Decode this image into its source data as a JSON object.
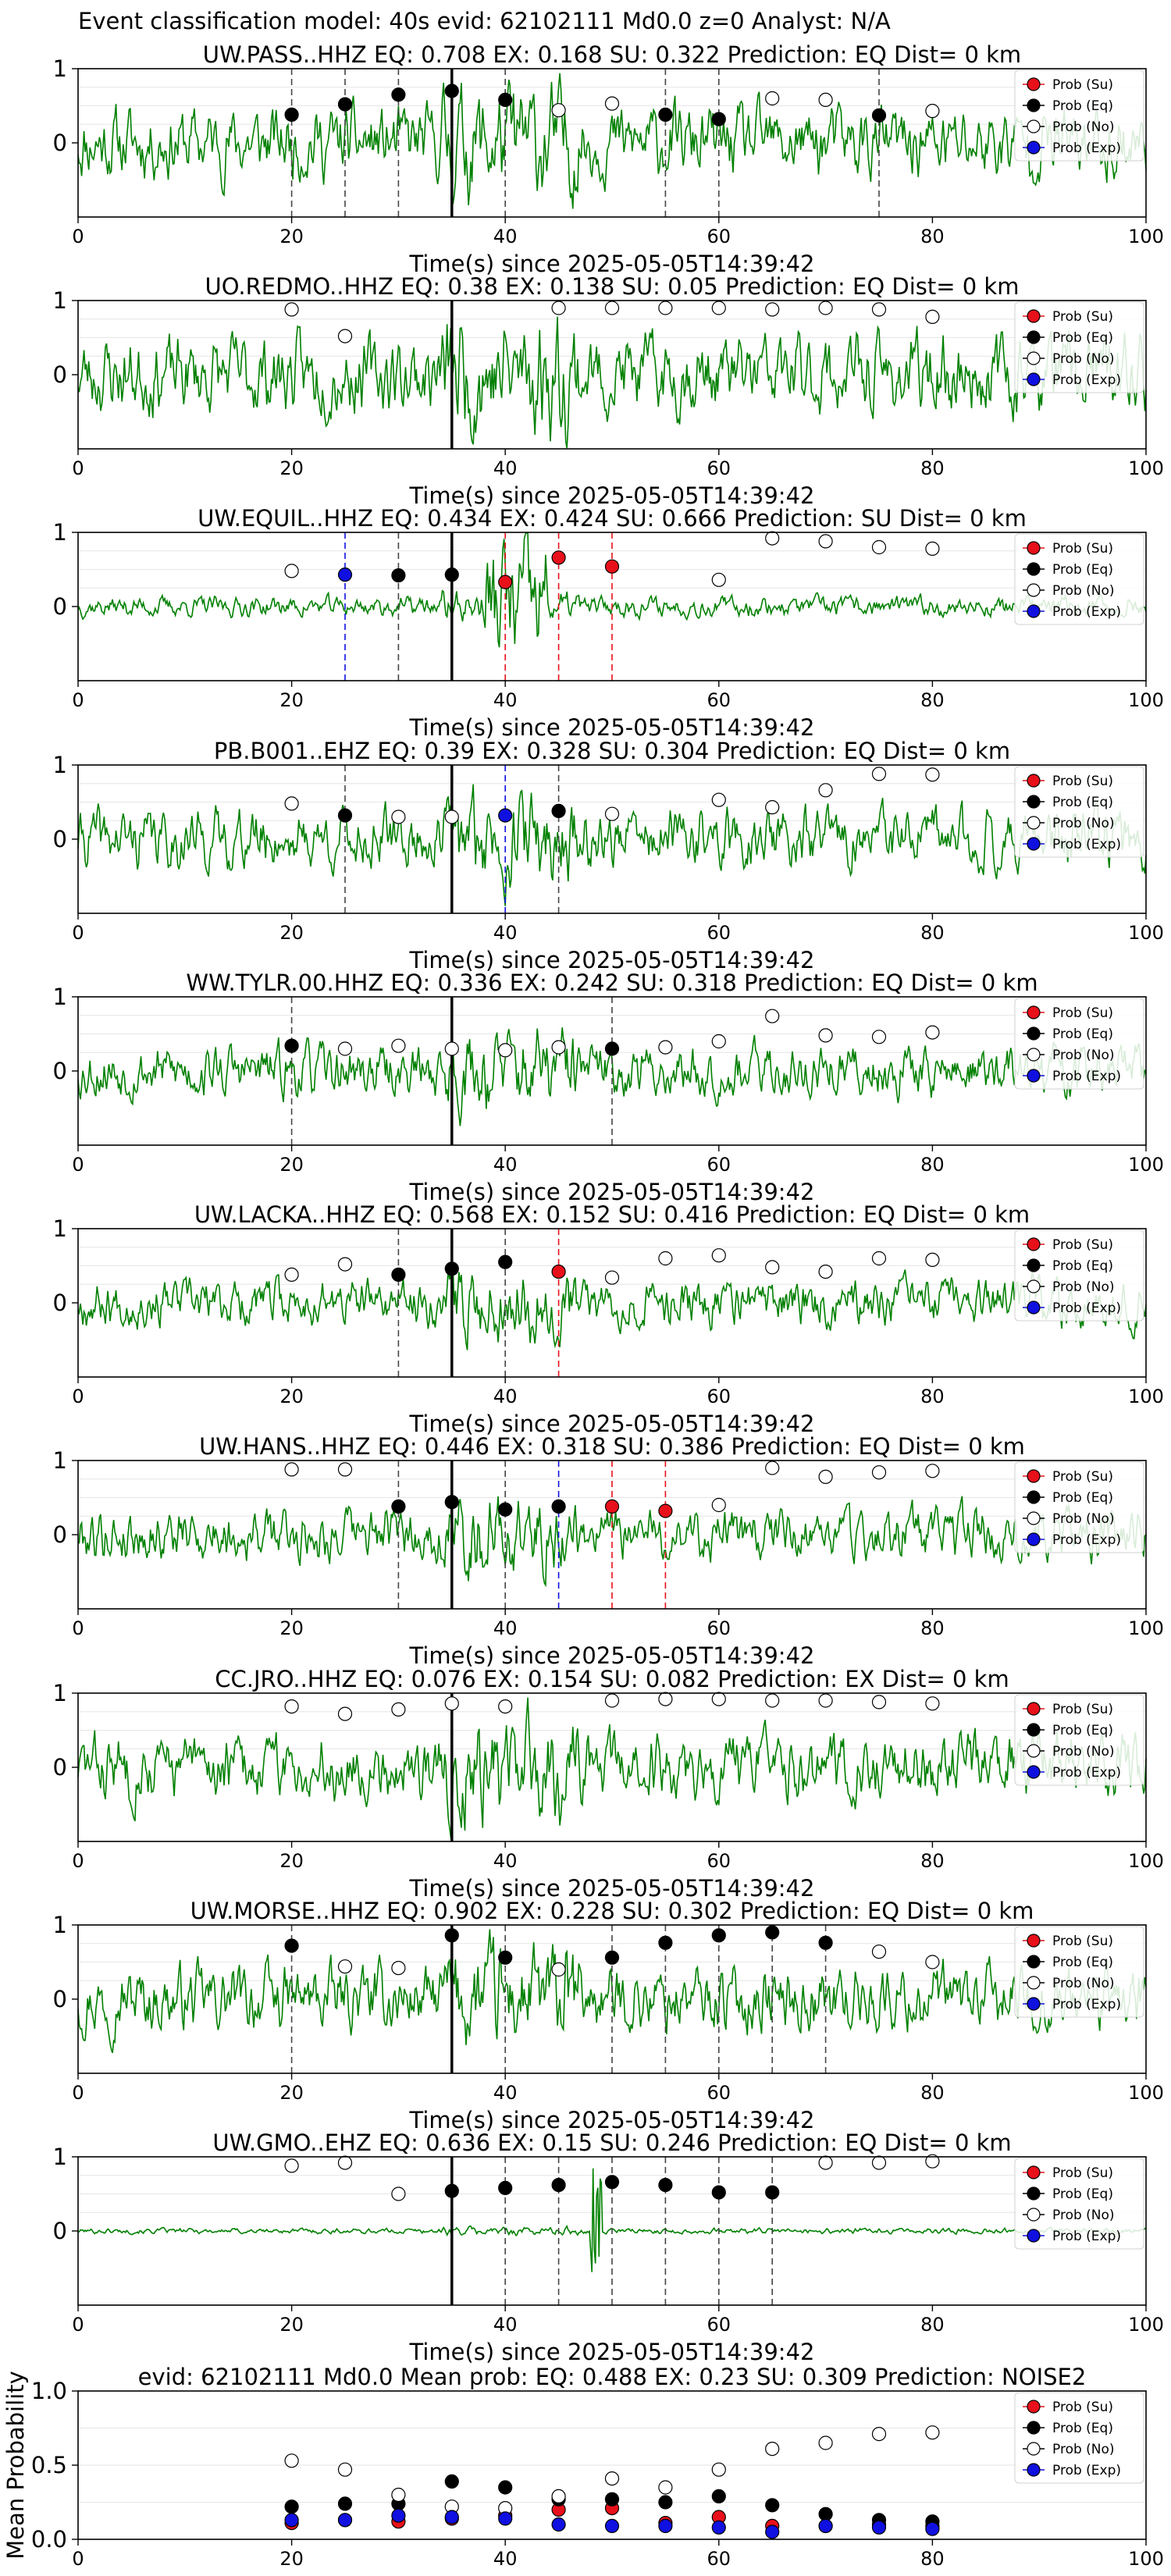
{
  "suptitle": "Event classification model: 40s evid: 62102111 Md0.0 z=0 Analyst: N/A",
  "legend_labels": [
    "Prob (Su)",
    "Prob (Eq)",
    "Prob (No)",
    "Prob (Exp)"
  ],
  "colors": {
    "su": "#e8101a",
    "eq": "#000000",
    "no": "#ffffff",
    "exp": "#1010e0",
    "wave": "#008000"
  },
  "chart_data": [
    {
      "type": "scatter",
      "title": "UW.PASS..HHZ   EQ: 0.708  EX: 0.168  SU: 0.322   Prediction: EQ    Dist= 0 km",
      "xlabel": "Time(s) since 2025-05-05T14:39:42",
      "xlim": [
        0,
        100
      ],
      "ylim": [
        -1,
        1
      ],
      "xticks": [
        "0",
        "20",
        "40",
        "60",
        "80",
        "100"
      ],
      "yticks": [
        "0",
        "1"
      ],
      "arrival": 35,
      "amp": 0.55,
      "seed": 11,
      "points": [
        [
          20,
          0.38,
          "eq"
        ],
        [
          25,
          0.52,
          "eq"
        ],
        [
          30,
          0.65,
          "eq"
        ],
        [
          35,
          0.7,
          "eq"
        ],
        [
          40,
          0.58,
          "eq"
        ],
        [
          45,
          0.44,
          "no"
        ],
        [
          50,
          0.53,
          "no"
        ],
        [
          55,
          0.38,
          "eq"
        ],
        [
          60,
          0.32,
          "eq"
        ],
        [
          65,
          0.6,
          "no"
        ],
        [
          70,
          0.58,
          "no"
        ],
        [
          75,
          0.37,
          "eq"
        ],
        [
          80,
          0.43,
          "no"
        ]
      ],
      "lines": [
        [
          20,
          "eq"
        ],
        [
          25,
          "eq"
        ],
        [
          30,
          "eq"
        ],
        [
          40,
          "eq"
        ],
        [
          55,
          "eq"
        ],
        [
          60,
          "eq"
        ],
        [
          75,
          "eq"
        ]
      ]
    },
    {
      "type": "scatter",
      "title": "UO.REDMO..HHZ   EQ: 0.38  EX: 0.138  SU: 0.05   Prediction: EQ    Dist= 0 km",
      "xlabel": "Time(s) since 2025-05-05T14:39:42",
      "xlim": [
        0,
        100
      ],
      "ylim": [
        -1,
        1
      ],
      "xticks": [
        "0",
        "20",
        "40",
        "60",
        "80",
        "100"
      ],
      "yticks": [
        "0",
        "1"
      ],
      "arrival": 35,
      "amp": 0.6,
      "seed": 23,
      "points": [
        [
          20,
          0.88,
          "no"
        ],
        [
          25,
          0.52,
          "no"
        ],
        [
          45,
          0.9,
          "no"
        ],
        [
          50,
          0.9,
          "no"
        ],
        [
          55,
          0.9,
          "no"
        ],
        [
          60,
          0.9,
          "no"
        ],
        [
          65,
          0.88,
          "no"
        ],
        [
          70,
          0.9,
          "no"
        ],
        [
          75,
          0.88,
          "no"
        ],
        [
          80,
          0.78,
          "no"
        ]
      ],
      "lines": []
    },
    {
      "type": "scatter",
      "title": "UW.EQUIL..HHZ   EQ: 0.434  EX: 0.424  SU: 0.666   Prediction: SU    Dist= 0 km",
      "xlabel": "Time(s) since 2025-05-05T14:39:42",
      "xlim": [
        0,
        100
      ],
      "ylim": [
        -1,
        1
      ],
      "xticks": [
        "0",
        "20",
        "40",
        "60",
        "80",
        "100"
      ],
      "yticks": [
        "0",
        "1"
      ],
      "arrival": 35,
      "amp": 0.15,
      "seed": 37,
      "points": [
        [
          20,
          0.48,
          "no"
        ],
        [
          25,
          0.43,
          "exp"
        ],
        [
          30,
          0.42,
          "eq"
        ],
        [
          35,
          0.43,
          "eq"
        ],
        [
          40,
          0.33,
          "su"
        ],
        [
          45,
          0.66,
          "su"
        ],
        [
          50,
          0.54,
          "su"
        ],
        [
          60,
          0.36,
          "no"
        ],
        [
          65,
          0.92,
          "no"
        ],
        [
          70,
          0.88,
          "no"
        ],
        [
          75,
          0.8,
          "no"
        ],
        [
          80,
          0.78,
          "no"
        ]
      ],
      "lines": [
        [
          25,
          "exp"
        ],
        [
          30,
          "eq"
        ],
        [
          40,
          "su"
        ],
        [
          45,
          "su"
        ],
        [
          50,
          "su"
        ]
      ]
    },
    {
      "type": "scatter",
      "title": "PB.B001..EHZ   EQ: 0.39  EX: 0.328  SU: 0.304   Prediction: EQ    Dist= 0 km",
      "xlabel": "Time(s) since 2025-05-05T14:39:42",
      "xlim": [
        0,
        100
      ],
      "ylim": [
        -1,
        1
      ],
      "xticks": [
        "0",
        "20",
        "40",
        "60",
        "80",
        "100"
      ],
      "yticks": [
        "0",
        "1"
      ],
      "arrival": 35,
      "amp": 0.45,
      "seed": 41,
      "points": [
        [
          20,
          0.48,
          "no"
        ],
        [
          25,
          0.32,
          "eq"
        ],
        [
          30,
          0.3,
          "no"
        ],
        [
          35,
          0.3,
          "no"
        ],
        [
          40,
          0.32,
          "exp"
        ],
        [
          45,
          0.38,
          "eq"
        ],
        [
          50,
          0.34,
          "no"
        ],
        [
          60,
          0.53,
          "no"
        ],
        [
          65,
          0.43,
          "no"
        ],
        [
          70,
          0.66,
          "no"
        ],
        [
          75,
          0.88,
          "no"
        ],
        [
          80,
          0.87,
          "no"
        ]
      ],
      "lines": [
        [
          25,
          "eq"
        ],
        [
          40,
          "exp"
        ],
        [
          45,
          "eq"
        ]
      ]
    },
    {
      "type": "scatter",
      "title": "WW.TYLR.00.HHZ   EQ: 0.336  EX: 0.242  SU: 0.318   Prediction: EQ    Dist= 0 km",
      "xlabel": "Time(s) since 2025-05-05T14:39:42",
      "xlim": [
        0,
        100
      ],
      "ylim": [
        -1,
        1
      ],
      "xticks": [
        "0",
        "20",
        "40",
        "60",
        "80",
        "100"
      ],
      "yticks": [
        "0",
        "1"
      ],
      "arrival": 35,
      "amp": 0.4,
      "seed": 53,
      "points": [
        [
          20,
          0.34,
          "eq"
        ],
        [
          25,
          0.3,
          "no"
        ],
        [
          30,
          0.34,
          "no"
        ],
        [
          35,
          0.3,
          "no"
        ],
        [
          40,
          0.28,
          "no"
        ],
        [
          45,
          0.32,
          "no"
        ],
        [
          50,
          0.3,
          "eq"
        ],
        [
          55,
          0.32,
          "no"
        ],
        [
          60,
          0.4,
          "no"
        ],
        [
          65,
          0.74,
          "no"
        ],
        [
          70,
          0.48,
          "no"
        ],
        [
          75,
          0.46,
          "no"
        ],
        [
          80,
          0.52,
          "no"
        ]
      ],
      "lines": [
        [
          20,
          "eq"
        ],
        [
          50,
          "eq"
        ]
      ]
    },
    {
      "type": "scatter",
      "title": "UW.LACKA..HHZ   EQ: 0.568  EX: 0.152  SU: 0.416   Prediction: EQ    Dist= 0 km",
      "xlabel": "Time(s) since 2025-05-05T14:39:42",
      "xlim": [
        0,
        100
      ],
      "ylim": [
        -1,
        1
      ],
      "xticks": [
        "0",
        "20",
        "40",
        "60",
        "80",
        "100"
      ],
      "yticks": [
        "0",
        "1"
      ],
      "arrival": 35,
      "amp": 0.35,
      "seed": 67,
      "points": [
        [
          20,
          0.38,
          "no"
        ],
        [
          25,
          0.52,
          "no"
        ],
        [
          30,
          0.38,
          "eq"
        ],
        [
          35,
          0.46,
          "eq"
        ],
        [
          40,
          0.55,
          "eq"
        ],
        [
          45,
          0.42,
          "su"
        ],
        [
          50,
          0.34,
          "no"
        ],
        [
          55,
          0.6,
          "no"
        ],
        [
          60,
          0.64,
          "no"
        ],
        [
          65,
          0.48,
          "no"
        ],
        [
          70,
          0.42,
          "no"
        ],
        [
          75,
          0.6,
          "no"
        ],
        [
          80,
          0.58,
          "no"
        ]
      ],
      "lines": [
        [
          30,
          "eq"
        ],
        [
          40,
          "eq"
        ],
        [
          45,
          "su"
        ]
      ]
    },
    {
      "type": "scatter",
      "title": "UW.HANS..HHZ   EQ: 0.446  EX: 0.318  SU: 0.386   Prediction: EQ    Dist= 0 km",
      "xlabel": "Time(s) since 2025-05-05T14:39:42",
      "xlim": [
        0,
        100
      ],
      "ylim": [
        -1,
        1
      ],
      "xticks": [
        "0",
        "20",
        "40",
        "60",
        "80",
        "100"
      ],
      "yticks": [
        "0",
        "1"
      ],
      "arrival": 35,
      "amp": 0.4,
      "seed": 79,
      "points": [
        [
          20,
          0.88,
          "no"
        ],
        [
          25,
          0.88,
          "no"
        ],
        [
          30,
          0.38,
          "eq"
        ],
        [
          35,
          0.44,
          "eq"
        ],
        [
          40,
          0.34,
          "eq"
        ],
        [
          45,
          0.38,
          "eq"
        ],
        [
          50,
          0.38,
          "su"
        ],
        [
          55,
          0.32,
          "su"
        ],
        [
          60,
          0.4,
          "no"
        ],
        [
          65,
          0.9,
          "no"
        ],
        [
          70,
          0.78,
          "no"
        ],
        [
          75,
          0.84,
          "no"
        ],
        [
          80,
          0.86,
          "no"
        ]
      ],
      "lines": [
        [
          30,
          "eq"
        ],
        [
          40,
          "eq"
        ],
        [
          45,
          "exp"
        ],
        [
          50,
          "su"
        ],
        [
          55,
          "su"
        ]
      ]
    },
    {
      "type": "scatter",
      "title": "CC.JRO..HHZ   EQ: 0.076  EX: 0.154  SU: 0.082   Prediction: EX    Dist= 0 km",
      "xlabel": "Time(s) since 2025-05-05T14:39:42",
      "xlim": [
        0,
        100
      ],
      "ylim": [
        -1,
        1
      ],
      "xticks": [
        "0",
        "20",
        "40",
        "60",
        "80",
        "100"
      ],
      "yticks": [
        "0",
        "1"
      ],
      "arrival": 35,
      "amp": 0.5,
      "seed": 83,
      "points": [
        [
          20,
          0.82,
          "no"
        ],
        [
          25,
          0.72,
          "no"
        ],
        [
          30,
          0.78,
          "no"
        ],
        [
          35,
          0.86,
          "no"
        ],
        [
          40,
          0.82,
          "no"
        ],
        [
          50,
          0.9,
          "no"
        ],
        [
          55,
          0.92,
          "no"
        ],
        [
          60,
          0.92,
          "no"
        ],
        [
          65,
          0.9,
          "no"
        ],
        [
          70,
          0.9,
          "no"
        ],
        [
          75,
          0.88,
          "no"
        ],
        [
          80,
          0.86,
          "no"
        ]
      ],
      "lines": []
    },
    {
      "type": "scatter",
      "title": "UW.MORSE..HHZ   EQ: 0.902  EX: 0.228  SU: 0.302   Prediction: EQ    Dist= 0 km",
      "xlabel": "Time(s) since 2025-05-05T14:39:42",
      "xlim": [
        0,
        100
      ],
      "ylim": [
        -1,
        1
      ],
      "xticks": [
        "0",
        "20",
        "40",
        "60",
        "80",
        "100"
      ],
      "yticks": [
        "0",
        "1"
      ],
      "arrival": 35,
      "amp": 0.5,
      "seed": 97,
      "points": [
        [
          20,
          0.72,
          "eq"
        ],
        [
          25,
          0.44,
          "no"
        ],
        [
          30,
          0.42,
          "no"
        ],
        [
          35,
          0.86,
          "eq"
        ],
        [
          40,
          0.56,
          "eq"
        ],
        [
          45,
          0.4,
          "no"
        ],
        [
          50,
          0.56,
          "eq"
        ],
        [
          55,
          0.76,
          "eq"
        ],
        [
          60,
          0.86,
          "eq"
        ],
        [
          65,
          0.9,
          "eq"
        ],
        [
          70,
          0.76,
          "eq"
        ],
        [
          75,
          0.64,
          "no"
        ],
        [
          80,
          0.5,
          "no"
        ]
      ],
      "lines": [
        [
          20,
          "eq"
        ],
        [
          40,
          "eq"
        ],
        [
          50,
          "eq"
        ],
        [
          55,
          "eq"
        ],
        [
          60,
          "eq"
        ],
        [
          65,
          "eq"
        ],
        [
          70,
          "eq"
        ]
      ]
    },
    {
      "type": "scatter",
      "title": "UW.GMO..EHZ   EQ: 0.636  EX: 0.15  SU: 0.246   Prediction: EQ    Dist= 0 km",
      "xlabel": "Time(s) since 2025-05-05T14:39:42",
      "xlim": [
        0,
        100
      ],
      "ylim": [
        -1,
        1
      ],
      "xticks": [
        "0",
        "20",
        "40",
        "60",
        "80",
        "100"
      ],
      "yticks": [
        "0",
        "1"
      ],
      "arrival": 35,
      "amp": 0.04,
      "seed": 101,
      "points": [
        [
          20,
          0.88,
          "no"
        ],
        [
          25,
          0.92,
          "no"
        ],
        [
          30,
          0.5,
          "no"
        ],
        [
          35,
          0.54,
          "eq"
        ],
        [
          40,
          0.58,
          "eq"
        ],
        [
          45,
          0.62,
          "eq"
        ],
        [
          50,
          0.66,
          "eq"
        ],
        [
          55,
          0.62,
          "eq"
        ],
        [
          60,
          0.52,
          "eq"
        ],
        [
          65,
          0.52,
          "eq"
        ],
        [
          70,
          0.92,
          "no"
        ],
        [
          75,
          0.92,
          "no"
        ],
        [
          80,
          0.94,
          "no"
        ]
      ],
      "lines": [
        [
          40,
          "eq"
        ],
        [
          45,
          "eq"
        ],
        [
          50,
          "eq"
        ],
        [
          55,
          "eq"
        ],
        [
          60,
          "eq"
        ],
        [
          65,
          "eq"
        ]
      ]
    },
    {
      "type": "scatter",
      "title": "evid: 62102111  Md0.0   Mean prob:   EQ: 0.488  EX: 0.23  SU: 0.309   Prediction: NOISE2",
      "xlabel": "",
      "ylabel": "Mean Probability",
      "xlim": [
        0,
        100
      ],
      "ylim": [
        0,
        1
      ],
      "xticks": [
        "0",
        "20",
        "40",
        "60",
        "80",
        "100"
      ],
      "yticks": [
        "0.0",
        "0.5",
        "1.0"
      ],
      "series": [
        {
          "name": "Prob (Su)",
          "cls": "su",
          "x": [
            20,
            25,
            30,
            35,
            40,
            45,
            50,
            55,
            60,
            65,
            70,
            75,
            80
          ],
          "y": [
            0.11,
            0.13,
            0.12,
            0.14,
            0.16,
            0.2,
            0.21,
            0.11,
            0.15,
            0.09,
            0.09,
            0.1,
            0.09
          ]
        },
        {
          "name": "Prob (Eq)",
          "cls": "eq",
          "x": [
            20,
            25,
            30,
            35,
            40,
            45,
            50,
            55,
            60,
            65,
            70,
            75,
            80
          ],
          "y": [
            0.22,
            0.24,
            0.24,
            0.39,
            0.35,
            0.27,
            0.27,
            0.25,
            0.29,
            0.23,
            0.17,
            0.13,
            0.12
          ]
        },
        {
          "name": "Prob (No)",
          "cls": "no",
          "x": [
            20,
            25,
            30,
            35,
            40,
            45,
            50,
            55,
            60,
            65,
            70,
            75,
            80
          ],
          "y": [
            0.53,
            0.47,
            0.3,
            0.22,
            0.21,
            0.29,
            0.41,
            0.35,
            0.47,
            0.61,
            0.65,
            0.71,
            0.72
          ]
        },
        {
          "name": "Prob (Exp)",
          "cls": "exp",
          "x": [
            20,
            25,
            30,
            35,
            40,
            45,
            50,
            55,
            60,
            65,
            70,
            75,
            80
          ],
          "y": [
            0.13,
            0.13,
            0.16,
            0.15,
            0.14,
            0.1,
            0.09,
            0.09,
            0.08,
            0.05,
            0.09,
            0.08,
            0.07
          ]
        }
      ]
    }
  ]
}
